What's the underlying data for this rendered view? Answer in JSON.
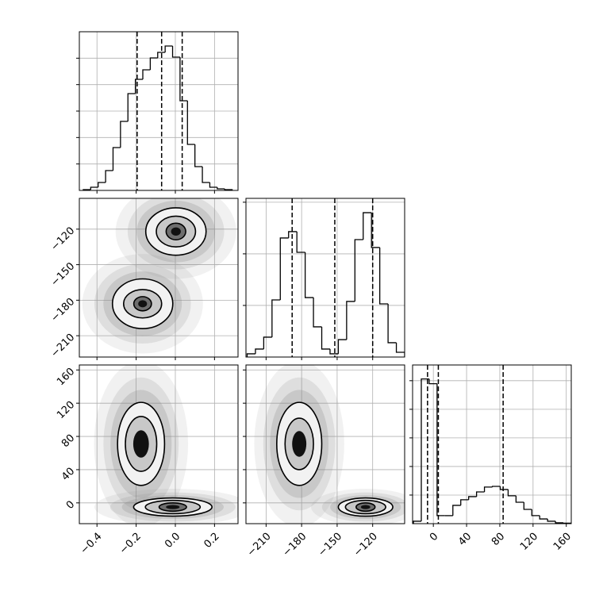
{
  "chart_data": [
    {
      "type": "histogram",
      "color": "#000000",
      "grid": true,
      "xlim": [
        -0.49,
        0.32
      ],
      "xticks": [
        {
          "value": -0.4,
          "label": "−0.4"
        },
        {
          "value": -0.2,
          "label": "−0.2"
        },
        {
          "value": 0,
          "label": "0.0"
        },
        0.2
      ],
      "ylim": [
        0,
        1200
      ],
      "yticks": [
        200,
        400,
        600,
        800,
        1000
      ],
      "bins": [
        -0.47,
        -0.432,
        -0.394,
        -0.356,
        -0.318,
        -0.28,
        -0.242,
        -0.204,
        -0.166,
        -0.128,
        -0.09,
        -0.052,
        -0.014,
        0.024,
        0.062,
        0.1,
        0.138,
        0.176,
        0.214,
        0.252,
        0.29
      ],
      "values": [
        6,
        24,
        60,
        150,
        324,
        522,
        732,
        840,
        912,
        1002,
        1044,
        1092,
        1008,
        678,
        348,
        180,
        60,
        24,
        12,
        6
      ],
      "quantiles": [
        -0.195,
        -0.07,
        0.035
      ]
    },
    {
      "type": "density",
      "color": "#000000",
      "grid": true,
      "ytick_labels": true,
      "xlim": [
        -0.49,
        0.32
      ],
      "xticks": [
        {
          "value": -0.4,
          "label": "−0.4"
        },
        {
          "value": -0.2,
          "label": "−0.2"
        },
        {
          "value": 0,
          "label": "0.0"
        },
        0.2
      ],
      "ylim": [
        -228,
        -94
      ],
      "yticks": [
        {
          "value": -210,
          "label": "−210"
        },
        {
          "value": -180,
          "label": "−180"
        },
        {
          "value": -150,
          "label": "−150"
        },
        {
          "value": -120,
          "label": "−120"
        }
      ],
      "contours": [
        [
          {
            "cx": 0.003,
            "cy": -122,
            "rx": 0.154,
            "ry": 20
          },
          {
            "cx": 0.003,
            "cy": -122,
            "rx": 0.1,
            "ry": 13
          },
          {
            "cx": 0.003,
            "cy": -122,
            "rx": 0.05,
            "ry": 7
          }
        ],
        [
          {
            "cx": -0.167,
            "cy": -183,
            "rx": 0.154,
            "ry": 21
          },
          {
            "cx": -0.167,
            "cy": -183,
            "rx": 0.097,
            "ry": 12
          },
          {
            "cx": -0.167,
            "cy": -183,
            "rx": 0.045,
            "ry": 6
          }
        ]
      ]
    },
    {
      "type": "histogram",
      "color": "#000000",
      "grid": true,
      "xlim": [
        -227,
        -93
      ],
      "xticks": [
        {
          "value": -210,
          "label": "−210"
        },
        {
          "value": -180,
          "label": "−180"
        },
        {
          "value": -150,
          "label": "−150"
        },
        {
          "value": -120,
          "label": "−120"
        }
      ],
      "ylim": [
        0,
        1230
      ],
      "yticks": [
        400,
        800,
        1200
      ],
      "bins": [
        -226,
        -219,
        -212,
        -205,
        -198,
        -191,
        -184,
        -177,
        -170,
        -163,
        -156,
        -149,
        -142,
        -135,
        -128,
        -121,
        -114,
        -107,
        -100,
        -93
      ],
      "values": [
        25,
        62,
        154,
        443,
        923,
        972,
        812,
        461,
        234,
        62,
        25,
        135,
        431,
        910,
        1119,
        849,
        412,
        111,
        37
      ],
      "quantiles": [
        -188,
        -152,
        -120
      ]
    },
    {
      "type": "density",
      "color": "#000000",
      "grid": true,
      "xtick_labels": true,
      "ytick_labels": true,
      "xlim": [
        -0.49,
        0.32
      ],
      "xticks": [
        {
          "value": -0.4,
          "label": "−0.4"
        },
        {
          "value": -0.2,
          "label": "−0.2"
        },
        {
          "value": 0,
          "label": "0.0"
        },
        0.2
      ],
      "ylim": [
        -25,
        166
      ],
      "yticks": [
        0,
        40,
        80,
        120,
        160
      ],
      "contours": [
        [
          {
            "cx": -0.175,
            "cy": 71,
            "rx": 0.12,
            "ry": 50
          },
          {
            "cx": -0.175,
            "cy": 71,
            "rx": 0.08,
            "ry": 33
          }
        ],
        [
          {
            "cx": -0.013,
            "cy": -5,
            "rx": 0.2,
            "ry": 11
          },
          {
            "cx": -0.013,
            "cy": -5,
            "rx": 0.14,
            "ry": 8
          },
          {
            "cx": -0.013,
            "cy": -5,
            "rx": 0.07,
            "ry": 5
          }
        ]
      ]
    },
    {
      "type": "density",
      "color": "#000000",
      "grid": true,
      "xtick_labels": true,
      "xlim": [
        -227,
        -93
      ],
      "xticks": [
        {
          "value": -210,
          "label": "−210"
        },
        {
          "value": -180,
          "label": "−180"
        },
        {
          "value": -150,
          "label": "−150"
        },
        {
          "value": -120,
          "label": "−120"
        }
      ],
      "ylim": [
        -25,
        166
      ],
      "yticks": [
        0,
        40,
        80,
        120,
        160
      ],
      "contours": [
        [
          {
            "cx": -182,
            "cy": 71,
            "rx": 19,
            "ry": 50
          },
          {
            "cx": -182,
            "cy": 71,
            "rx": 12,
            "ry": 31
          }
        ],
        [
          {
            "cx": -126,
            "cy": -5,
            "rx": 23,
            "ry": 11
          },
          {
            "cx": -126,
            "cy": -5,
            "rx": 17,
            "ry": 8
          },
          {
            "cx": -126,
            "cy": -5,
            "rx": 8,
            "ry": 5
          }
        ]
      ]
    },
    {
      "type": "histogram",
      "color": "#000000",
      "grid": true,
      "xtick_labels": true,
      "xlim": [
        -25,
        166
      ],
      "xticks": [
        0,
        40,
        80,
        120,
        160
      ],
      "ylim": [
        0,
        1110
      ],
      "yticks": [
        200,
        400,
        600,
        800,
        1000
      ],
      "bins": [
        -24,
        -14.5,
        -5,
        4.5,
        14,
        23.5,
        33,
        42.5,
        52,
        61.5,
        71,
        80.5,
        90,
        99.5,
        109,
        118.5,
        128,
        137.5,
        147,
        156.5,
        166
      ],
      "values": [
        17,
        1012,
        979,
        56,
        56,
        128,
        167,
        189,
        222,
        256,
        261,
        239,
        195,
        150,
        100,
        56,
        33,
        17,
        6,
        3
      ],
      "quantiles": [
        -7,
        6,
        84
      ]
    }
  ]
}
